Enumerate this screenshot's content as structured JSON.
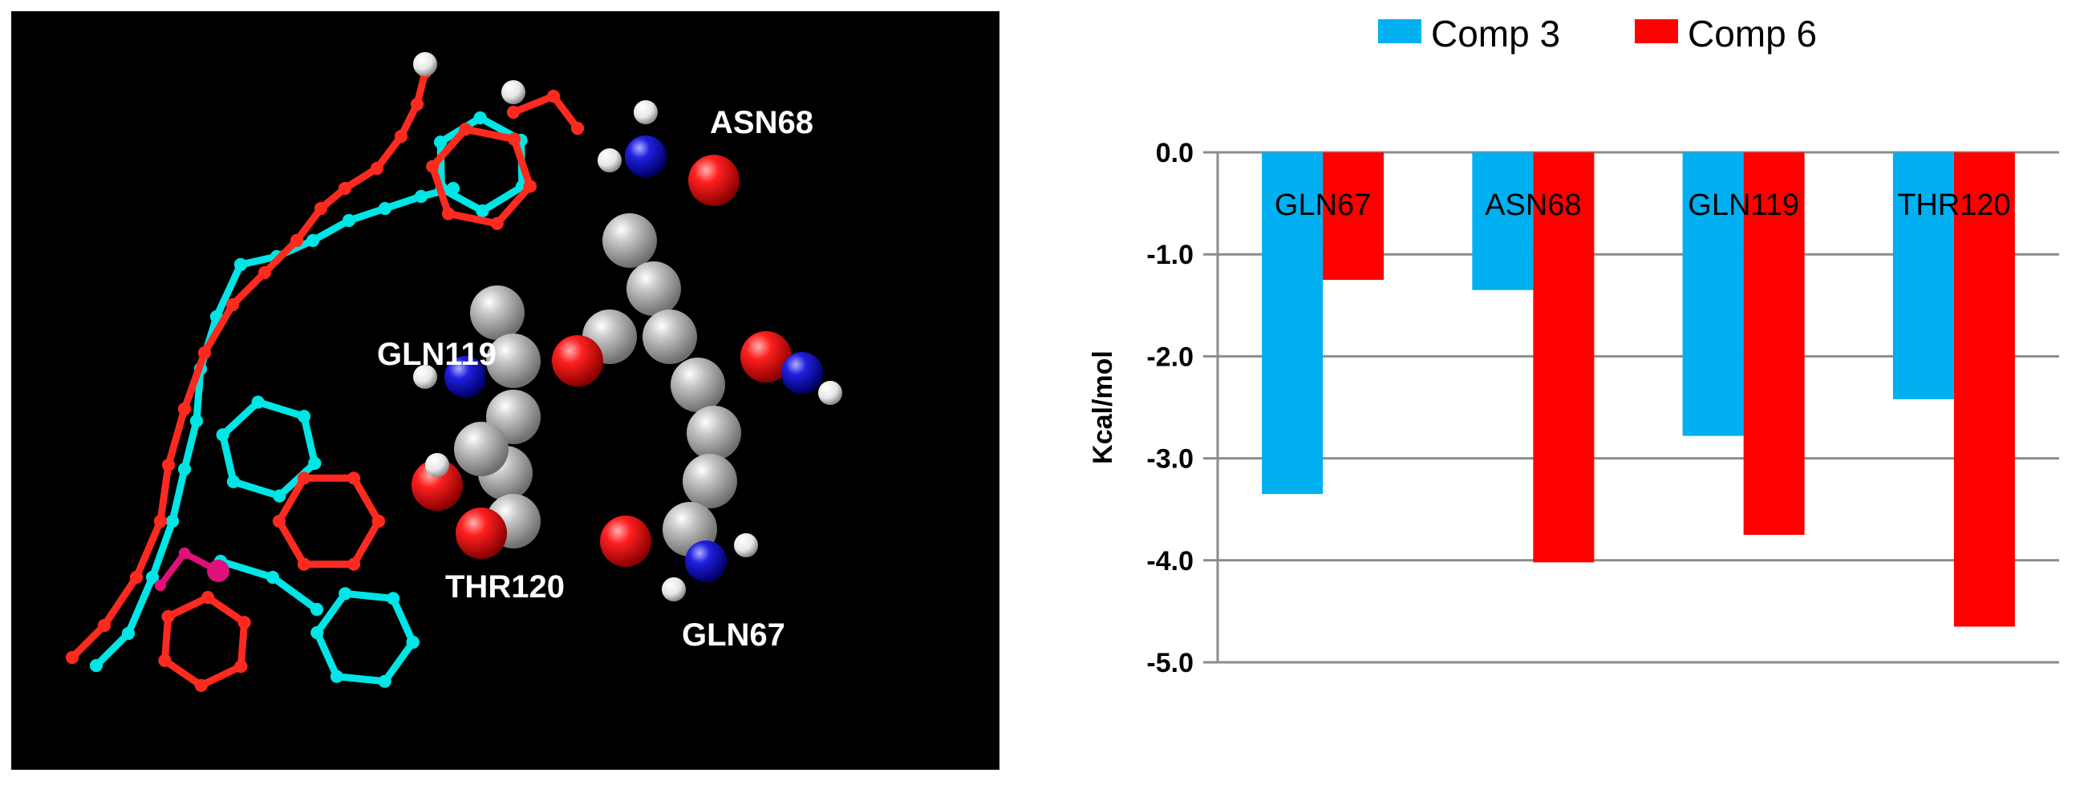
{
  "molecule_panel": {
    "residue_labels": [
      "ASN68",
      "GLN119",
      "THR120",
      "GLN67"
    ],
    "colors": {
      "background": "#000000",
      "comp3_ligand": "#00e5e5",
      "comp6_ligand": "#ff2a1f",
      "metal": "#e0107a",
      "carbon": "#a8a8a8",
      "oxygen": "#e60000",
      "nitrogen": "#1a1acc",
      "hydrogen": "#ffffff"
    }
  },
  "chart_data": {
    "type": "bar",
    "categories": [
      "GLN67",
      "ASN68",
      "GLN119",
      "THR120"
    ],
    "series": [
      {
        "name": "Comp 3",
        "color": "#00b0f0",
        "values": [
          -3.35,
          -1.35,
          -2.78,
          -2.42
        ]
      },
      {
        "name": "Comp 6",
        "color": "#ff0000",
        "values": [
          -1.25,
          -4.02,
          -3.75,
          -4.65
        ]
      }
    ],
    "title": "",
    "xlabel": "",
    "ylabel": "Kcal/mol",
    "ylim": [
      -5.0,
      0.0
    ],
    "yticks": [
      "0.0",
      "-1.0",
      "-2.0",
      "-3.0",
      "-4.0",
      "-5.0"
    ],
    "ytick_values": [
      0,
      -1,
      -2,
      -3,
      -4,
      -5
    ],
    "grid": true,
    "legend_position": "top"
  }
}
